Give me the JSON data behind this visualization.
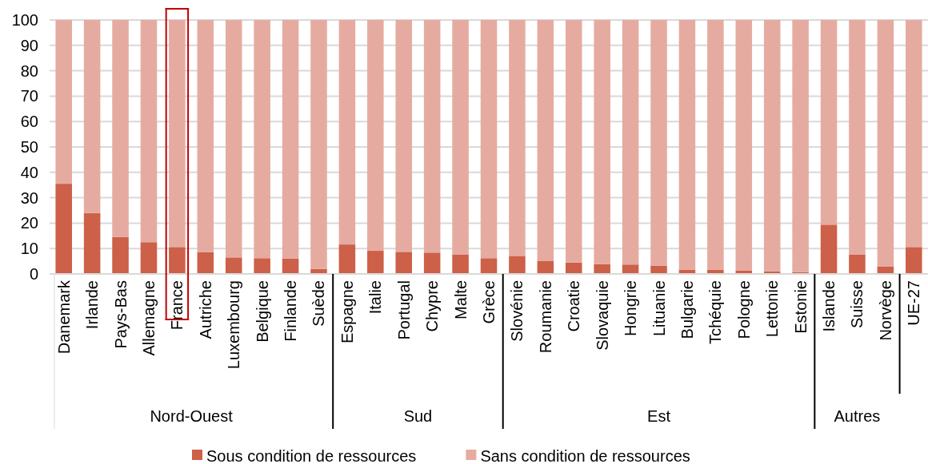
{
  "chart_data": {
    "type": "bar",
    "stacked": true,
    "categories": [
      "Danemark",
      "Irlande",
      "Pays-Bas",
      "Allemagne",
      "France",
      "Autriche",
      "Luxembourg",
      "Belgique",
      "Finlande",
      "Suède",
      "Espagne",
      "Italie",
      "Portugal",
      "Chypre",
      "Malte",
      "Grèce",
      "Slovénie",
      "Roumanie",
      "Croatie",
      "Slovaquie",
      "Hongrie",
      "Lituanie",
      "Bulgarie",
      "Tchéquie",
      "Pologne",
      "Lettonie",
      "Estonie",
      "Islande",
      "Suisse",
      "Norvège",
      "UE-27"
    ],
    "series": [
      {
        "name": "Sous condition de ressources",
        "color": "#cd6048",
        "values": [
          35.5,
          24,
          14.6,
          12.5,
          10.6,
          8.5,
          6.5,
          6.2,
          6,
          2,
          11.6,
          9.1,
          8.7,
          8.4,
          7.7,
          6.2,
          7.1,
          5.2,
          4.5,
          3.9,
          3.7,
          3.3,
          1.7,
          1.7,
          1.4,
          1,
          0.7,
          19.4,
          7.7,
          3,
          10.6
        ]
      },
      {
        "name": "Sans condition de ressources",
        "color": "#e6aba0",
        "values": [
          64.5,
          76,
          85.4,
          87.5,
          89.4,
          91.5,
          93.5,
          93.8,
          94,
          98,
          88.4,
          90.9,
          91.3,
          91.6,
          92.3,
          93.8,
          92.9,
          94.8,
          95.5,
          96.1,
          96.3,
          96.7,
          98.3,
          98.3,
          98.6,
          99,
          99.3,
          80.6,
          92.3,
          97,
          89.4
        ]
      }
    ],
    "ylim": [
      0,
      100
    ],
    "yticks": [
      0,
      10,
      20,
      30,
      40,
      50,
      60,
      70,
      80,
      90,
      100
    ],
    "grid": "y",
    "legend": "bottom",
    "annotations": [
      "Nord-Ouest",
      "Sud",
      "Est",
      "Autres"
    ]
  }
}
